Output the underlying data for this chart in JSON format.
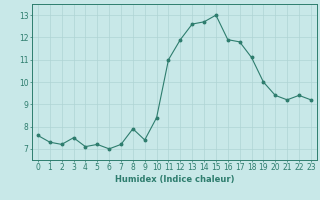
{
  "x": [
    0,
    1,
    2,
    3,
    4,
    5,
    6,
    7,
    8,
    9,
    10,
    11,
    12,
    13,
    14,
    15,
    16,
    17,
    18,
    19,
    20,
    21,
    22,
    23
  ],
  "y": [
    7.6,
    7.3,
    7.2,
    7.5,
    7.1,
    7.2,
    7.0,
    7.2,
    7.9,
    7.4,
    8.4,
    11.0,
    11.9,
    12.6,
    12.7,
    13.0,
    11.9,
    11.8,
    11.1,
    10.0,
    9.4,
    9.2,
    9.4,
    9.2
  ],
  "xlabel": "Humidex (Indice chaleur)",
  "ylabel": "",
  "xlim": [
    -0.5,
    23.5
  ],
  "ylim": [
    6.5,
    13.5
  ],
  "yticks": [
    7,
    8,
    9,
    10,
    11,
    12,
    13
  ],
  "xticks": [
    0,
    1,
    2,
    3,
    4,
    5,
    6,
    7,
    8,
    9,
    10,
    11,
    12,
    13,
    14,
    15,
    16,
    17,
    18,
    19,
    20,
    21,
    22,
    23
  ],
  "line_color": "#2e7d6e",
  "bg_color": "#c8e8e8",
  "grid_color": "#afd4d4",
  "marker": "o",
  "marker_size": 1.8,
  "line_width": 0.8,
  "xlabel_fontsize": 6.0,
  "tick_fontsize": 5.5
}
